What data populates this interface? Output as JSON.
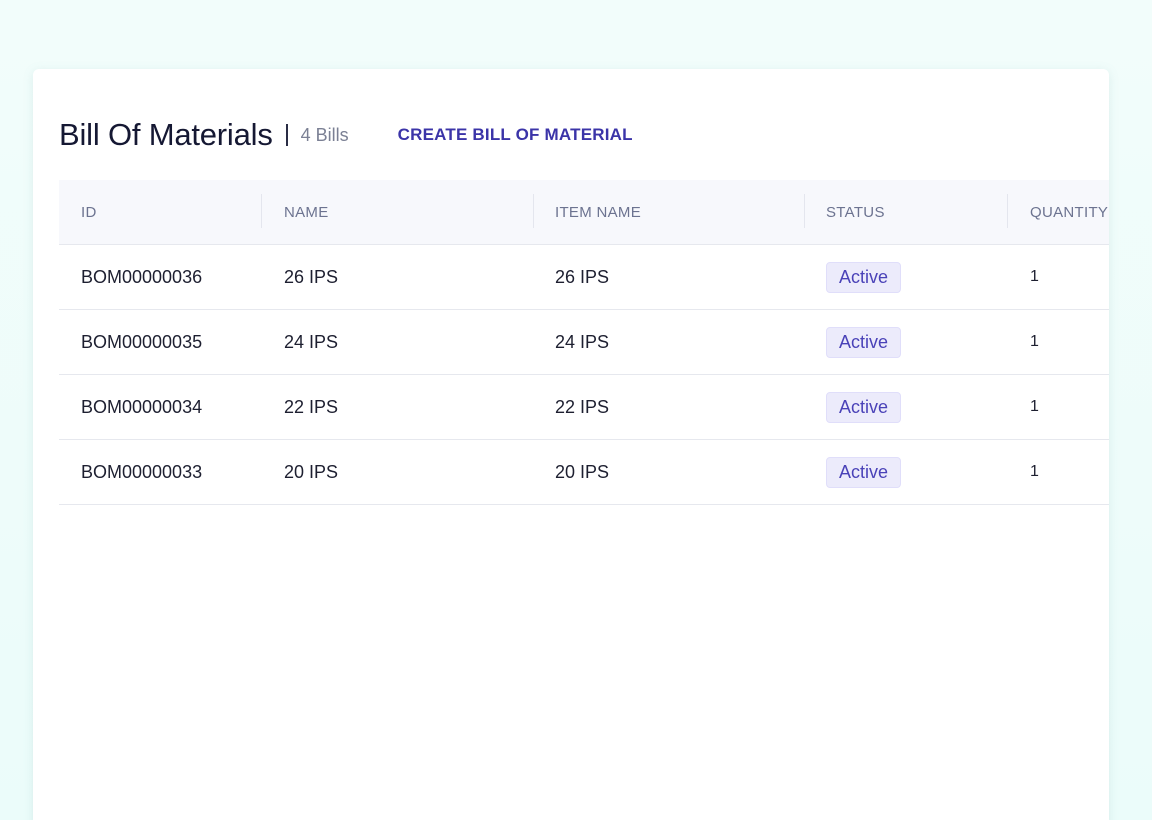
{
  "page": {
    "title": "Bill Of Materials",
    "count_label": "4 Bills",
    "create_label": "CREATE BILL OF MATERIAL"
  },
  "table": {
    "columns": [
      "ID",
      "NAME",
      "ITEM NAME",
      "STATUS",
      "QUANTITY"
    ],
    "rows": [
      {
        "id": "BOM00000036",
        "name": "26 IPS",
        "item_name": "26 IPS",
        "status": "Active",
        "quantity": "1"
      },
      {
        "id": "BOM00000035",
        "name": "24 IPS",
        "item_name": "24 IPS",
        "status": "Active",
        "quantity": "1"
      },
      {
        "id": "BOM00000034",
        "name": "22 IPS",
        "item_name": "22 IPS",
        "status": "Active",
        "quantity": "1"
      },
      {
        "id": "BOM00000033",
        "name": "20 IPS",
        "item_name": "20 IPS",
        "status": "Active",
        "quantity": "1"
      }
    ]
  },
  "colors": {
    "accent": "#3b34a8",
    "status_active_bg": "#ecebfb",
    "status_active_text": "#4a42b8"
  }
}
